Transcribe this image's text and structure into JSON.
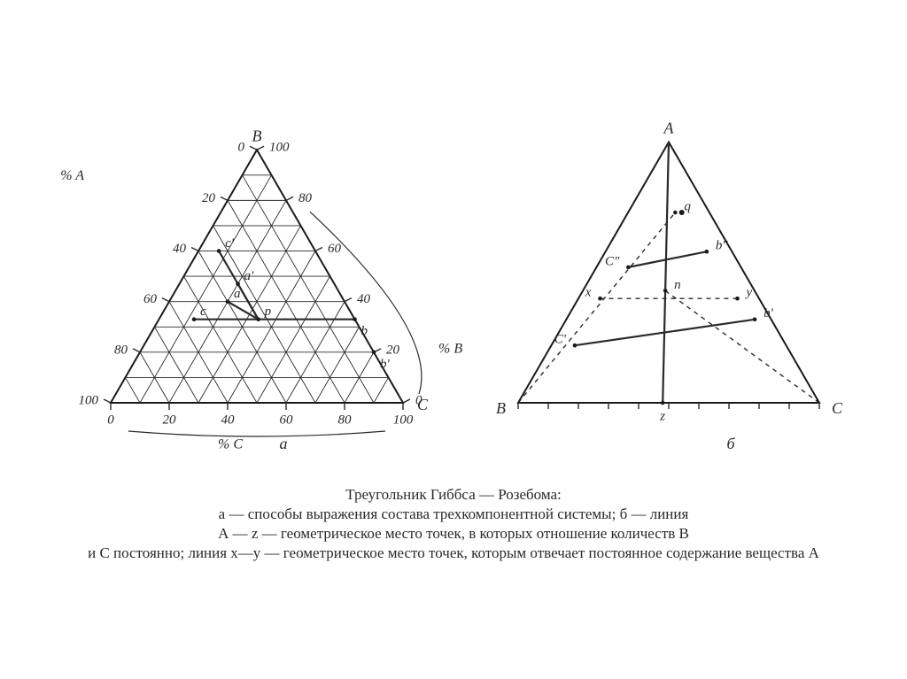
{
  "title": "Треугольник Гиббса — Розебома:",
  "caption_lines": [
    "а — способы выражения состава трехкомпонентной системы;  б — линия",
    "А — z — геометрическое место точек, в которых отношение количеств B",
    "и C постоянно;  линия x—y — геометрическое место точек, которым отвечает постоянное содержание вещества A"
  ],
  "colors": {
    "bg": "#ffffff",
    "line": "#2a2a2a",
    "text": "#2a2a2a",
    "heavy": "#1a1a1a"
  },
  "stroke": {
    "grid": 0.9,
    "outline": 2.0,
    "interior": 2.2,
    "dash": "5,5"
  },
  "font": {
    "tick": 15,
    "axis": 16,
    "vertex": 18,
    "sublabel": 15,
    "caption": 17
  },
  "left": {
    "sublabel": "а",
    "vertices": {
      "top": "B",
      "left": "",
      "right": "C"
    },
    "axis_labels": {
      "left": "% A",
      "right": "% B",
      "bottom": "% C"
    },
    "ticks_left": [
      0,
      20,
      40,
      60,
      80,
      100
    ],
    "ticks_right": [
      100,
      80,
      60,
      40,
      20,
      0
    ],
    "ticks_bottom": [
      0,
      20,
      40,
      60,
      80,
      100
    ],
    "grid_divisions": 10,
    "points": {
      "p": {
        "a": 33,
        "b": 33,
        "c": 34,
        "label": "p"
      },
      "a_": {
        "a": 33,
        "b": 47,
        "c": 20,
        "label": "a'"
      },
      "a__": {
        "a": 40,
        "b": 40,
        "c": 20,
        "label": "a"
      },
      "b_": {
        "a": 0,
        "b": 33,
        "c": 67,
        "label": "b"
      },
      "bp": {
        "a": 0,
        "b": 20,
        "c": 80,
        "label": "b'"
      },
      "c_": {
        "a": 55,
        "b": 33,
        "c": 12,
        "label": "c"
      },
      "cp": {
        "a": 33,
        "b": 60,
        "c": 7,
        "label": "c'"
      }
    },
    "interior_lines": [
      [
        "p",
        "a__"
      ],
      [
        "p",
        "b_"
      ],
      [
        "p",
        "c_"
      ],
      [
        "cp",
        "p"
      ],
      [
        "a_",
        "p"
      ]
    ]
  },
  "right": {
    "sublabel": "б",
    "vertices": {
      "top": "A",
      "left": "B",
      "right": "C"
    },
    "base_ticks": 10,
    "points": {
      "n": {
        "u": 0.48,
        "v": 0.43,
        "label": "n"
      },
      "q": {
        "u": 0.58,
        "v": 0.73,
        "label": "q"
      },
      "qd": {
        "u": 0.66,
        "v": 0.73,
        "label": "·"
      },
      "x": {
        "u": 0.12,
        "v": 0.4,
        "label": "x"
      },
      "y": {
        "u": 0.88,
        "v": 0.4,
        "label": "y"
      },
      "Cpp": {
        "u": 0.22,
        "v": 0.52,
        "label": "C\""
      },
      "bpp": {
        "u": 0.8,
        "v": 0.58,
        "label": "b\""
      },
      "Cp": {
        "u": 0.1,
        "v": 0.22,
        "label": "C'"
      },
      "bp": {
        "u": 0.92,
        "v": 0.32,
        "label": "b'"
      },
      "z": {
        "u": 0.48,
        "v": 0.0,
        "label": "z"
      }
    },
    "solid_lines": [
      [
        "Cpp",
        "bpp"
      ],
      [
        "Cp",
        "bp"
      ],
      [
        "vertex_top",
        "z"
      ]
    ],
    "dashed_lines": [
      [
        "x",
        "y"
      ],
      [
        "vertex_left",
        "q"
      ],
      [
        "vertex_right",
        "n"
      ],
      [
        "n",
        "z"
      ]
    ]
  }
}
